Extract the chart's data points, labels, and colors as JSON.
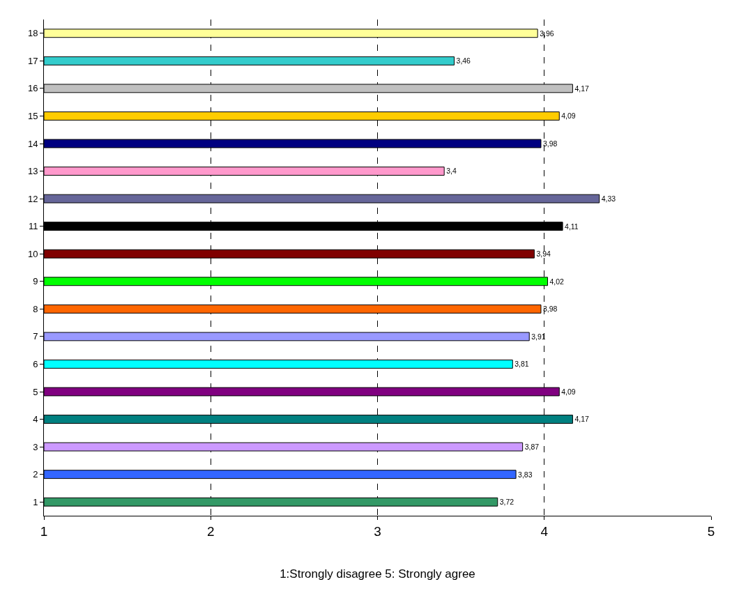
{
  "chart_data": {
    "type": "bar",
    "orientation": "horizontal",
    "xlabel": "1:Strongly disagree 5: Strongly agree",
    "categories": [
      "18",
      "17",
      "16",
      "15",
      "14",
      "13",
      "12",
      "11",
      "10",
      "9",
      "8",
      "7",
      "6",
      "5",
      "4",
      "3",
      "2",
      "1"
    ],
    "values": [
      3.96,
      3.46,
      4.17,
      4.09,
      3.98,
      3.4,
      4.33,
      4.11,
      3.94,
      4.02,
      3.98,
      3.91,
      3.81,
      4.09,
      4.17,
      3.87,
      3.83,
      3.72
    ],
    "value_labels": [
      "3,96",
      "3,46",
      "4,17",
      "4,09",
      "3,98",
      "3,4",
      "4,33",
      "4,11",
      "3,94",
      "4,02",
      "3,98",
      "3,91",
      "3,81",
      "4,09",
      "4,17",
      "3,87",
      "3,83",
      "3,72"
    ],
    "colors": [
      "#ffff99",
      "#33cccc",
      "#c0c0c0",
      "#ffcc00",
      "#000080",
      "#ff99cc",
      "#666699",
      "#000000",
      "#800000",
      "#00ff00",
      "#ff6600",
      "#9999ff",
      "#00ffff",
      "#800080",
      "#008080",
      "#cc99ff",
      "#3366ff",
      "#339966"
    ],
    "xlim": [
      1,
      5
    ],
    "xticks": [
      1,
      2,
      3,
      4,
      5
    ],
    "grid": "x",
    "line_style": "dashed",
    "legend": false
  }
}
